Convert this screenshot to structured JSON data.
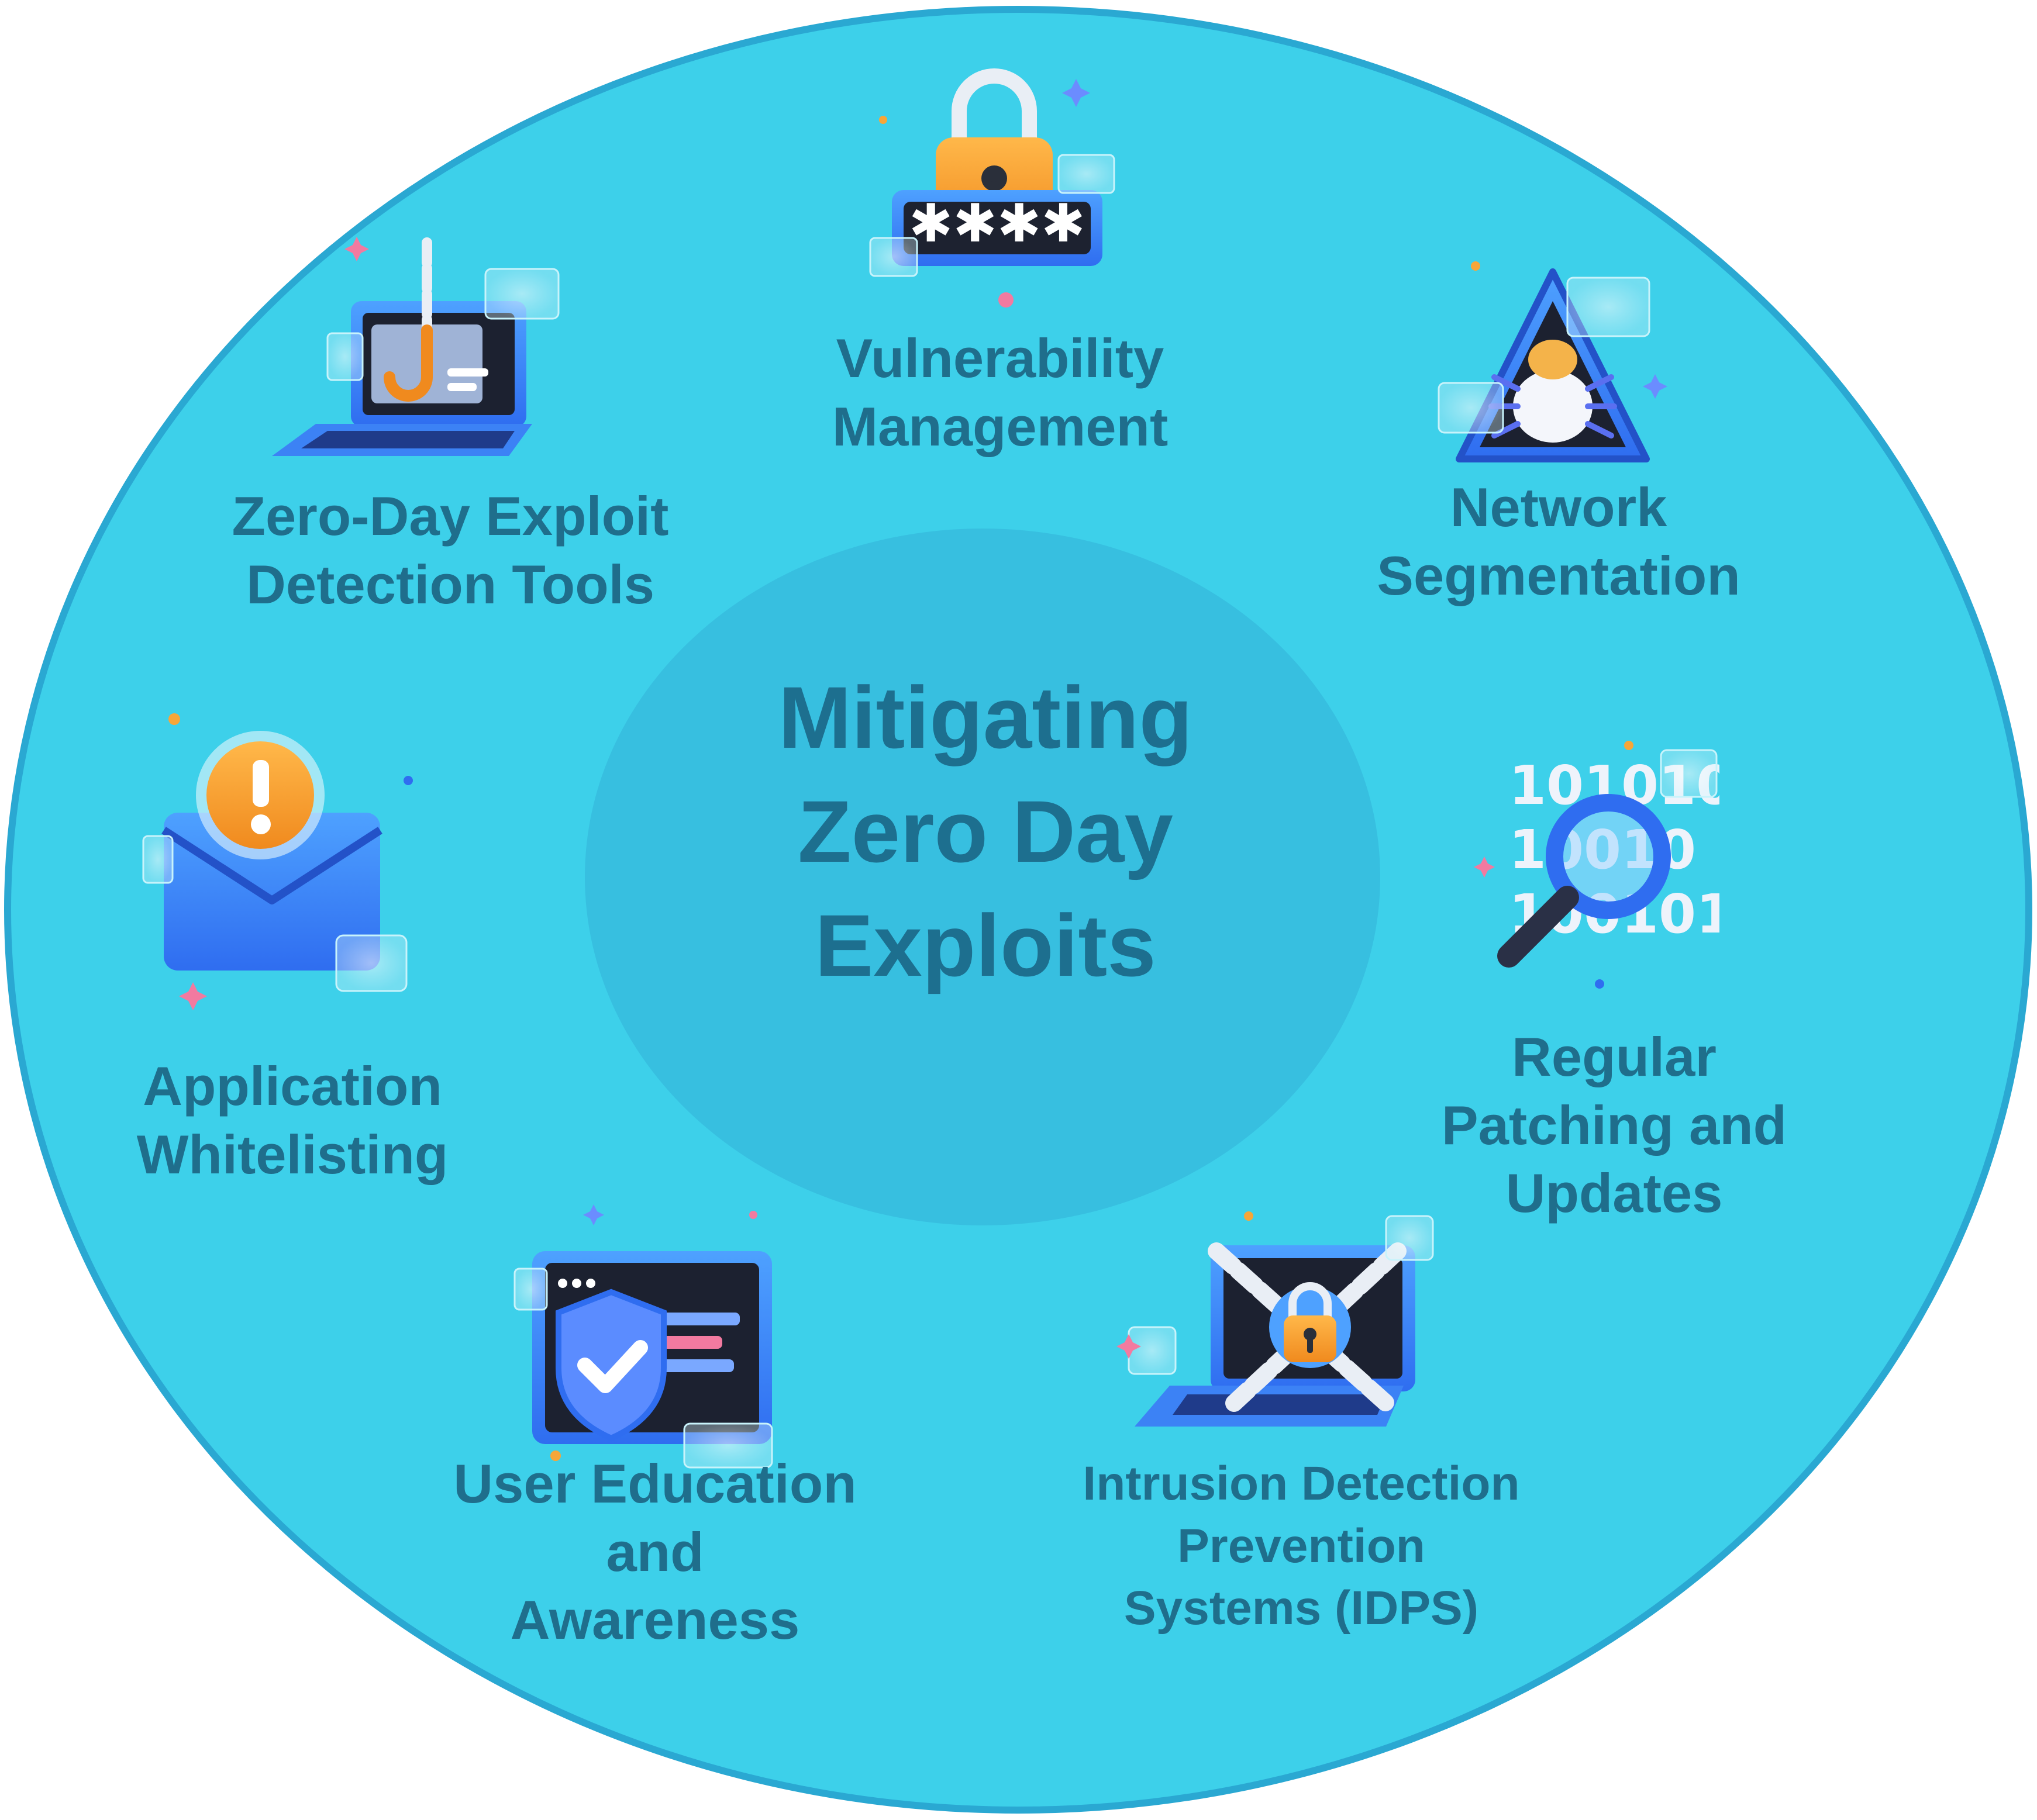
{
  "diagram": {
    "center_title": "Mitigating\nZero Day\nExploits",
    "colors": {
      "outer_circle": "#3dd0ea",
      "outer_border": "#2aa8d2",
      "inner_circle": "#37bfe0",
      "text": "#1f6e8c"
    },
    "items": [
      {
        "label": "Vulnerability\nManagement",
        "icon": "padlock-password-icon"
      },
      {
        "label": "Network\nSegmentation",
        "icon": "warning-bug-icon"
      },
      {
        "label": "Regular\nPatching and\nUpdates",
        "icon": "binary-magnifier-icon"
      },
      {
        "label": "Intrusion Detection\nPrevention\nSystems (IDPS)",
        "icon": "chained-laptop-icon"
      },
      {
        "label": "User Education\nand\nAwareness",
        "icon": "shield-check-icon"
      },
      {
        "label": "Application\nWhitelisting",
        "icon": "alert-envelope-icon"
      },
      {
        "label": "Zero-Day Exploit\nDetection Tools",
        "icon": "phishing-laptop-icon"
      }
    ]
  }
}
